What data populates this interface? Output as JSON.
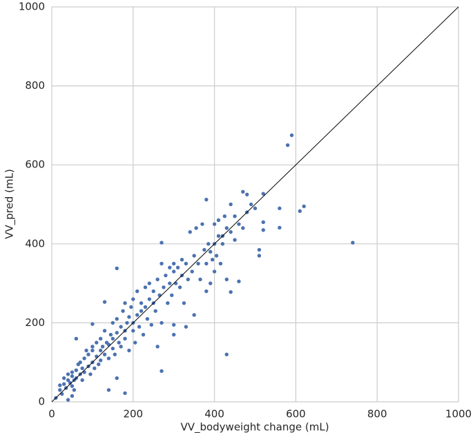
{
  "chart_data": {
    "type": "scatter",
    "x_label": "VV_bodyweight change (mL)",
    "y_label": "VV_pred (mL)",
    "color": "#4c72b0",
    "x": [
      10,
      20,
      20,
      25,
      30,
      30,
      35,
      40,
      40,
      45,
      50,
      50,
      50,
      55,
      55,
      60,
      60,
      65,
      70,
      70,
      75,
      75,
      80,
      80,
      85,
      90,
      90,
      95,
      100,
      100,
      100,
      105,
      110,
      110,
      115,
      120,
      120,
      120,
      125,
      130,
      130,
      135,
      140,
      140,
      145,
      150,
      150,
      150,
      155,
      160,
      160,
      165,
      170,
      170,
      175,
      180,
      180,
      180,
      185,
      190,
      190,
      195,
      200,
      200,
      200,
      205,
      210,
      210,
      215,
      220,
      220,
      225,
      230,
      230,
      235,
      240,
      240,
      245,
      250,
      250,
      255,
      260,
      260,
      265,
      270,
      270,
      275,
      280,
      285,
      290,
      290,
      295,
      300,
      300,
      305,
      310,
      315,
      320,
      320,
      325,
      330,
      335,
      340,
      345,
      350,
      355,
      360,
      365,
      370,
      375,
      380,
      385,
      390,
      395,
      400,
      400,
      405,
      410,
      415,
      420,
      425,
      430,
      440,
      450,
      460,
      470,
      480,
      500,
      740,
      590,
      580,
      620,
      610,
      560,
      560,
      520,
      470,
      380,
      270,
      160,
      430,
      270,
      180,
      140,
      160,
      40,
      50,
      60,
      100,
      130,
      520,
      520,
      510,
      510,
      490,
      480,
      450,
      440,
      460,
      440,
      430,
      380,
      350,
      330,
      300,
      300,
      390,
      400,
      410,
      420
    ],
    "values": [
      10,
      30,
      42,
      20,
      45,
      60,
      35,
      55,
      70,
      48,
      40,
      65,
      75,
      30,
      55,
      80,
      60,
      95,
      70,
      100,
      85,
      55,
      110,
      75,
      130,
      90,
      120,
      70,
      100,
      140,
      130,
      85,
      115,
      150,
      95,
      130,
      160,
      105,
      140,
      120,
      180,
      150,
      145,
      110,
      170,
      160,
      135,
      200,
      120,
      175,
      210,
      150,
      190,
      140,
      230,
      180,
      160,
      250,
      200,
      215,
      130,
      240,
      200,
      180,
      260,
      150,
      220,
      280,
      190,
      230,
      250,
      170,
      240,
      290,
      210,
      260,
      300,
      195,
      250,
      280,
      230,
      310,
      140,
      270,
      200,
      350,
      290,
      320,
      250,
      300,
      340,
      270,
      330,
      350,
      300,
      340,
      290,
      320,
      360,
      250,
      350,
      310,
      430,
      330,
      370,
      440,
      350,
      310,
      450,
      385,
      350,
      400,
      380,
      360,
      400,
      450,
      370,
      460,
      350,
      400,
      470,
      440,
      430,
      410,
      450,
      440,
      480,
      490,
      403,
      675,
      650,
      495,
      483,
      490,
      441,
      527,
      532,
      512,
      403,
      338,
      120,
      78,
      22,
      30,
      60,
      5,
      15,
      160,
      197,
      253,
      455,
      435,
      385,
      370,
      500,
      525,
      470,
      500,
      305,
      278,
      310,
      280,
      220,
      190,
      170,
      195,
      300,
      330,
      420,
      420
    ],
    "reference_line": {
      "x": [
        0,
        1000
      ],
      "y": [
        0,
        1000
      ],
      "color": "#000000"
    },
    "xlim": [
      0,
      1000
    ],
    "ylim": [
      0,
      1000
    ],
    "xticks": [
      0,
      200,
      400,
      600,
      800,
      1000
    ],
    "yticks": [
      0,
      200,
      400,
      600,
      800,
      1000
    ],
    "grid": true
  }
}
